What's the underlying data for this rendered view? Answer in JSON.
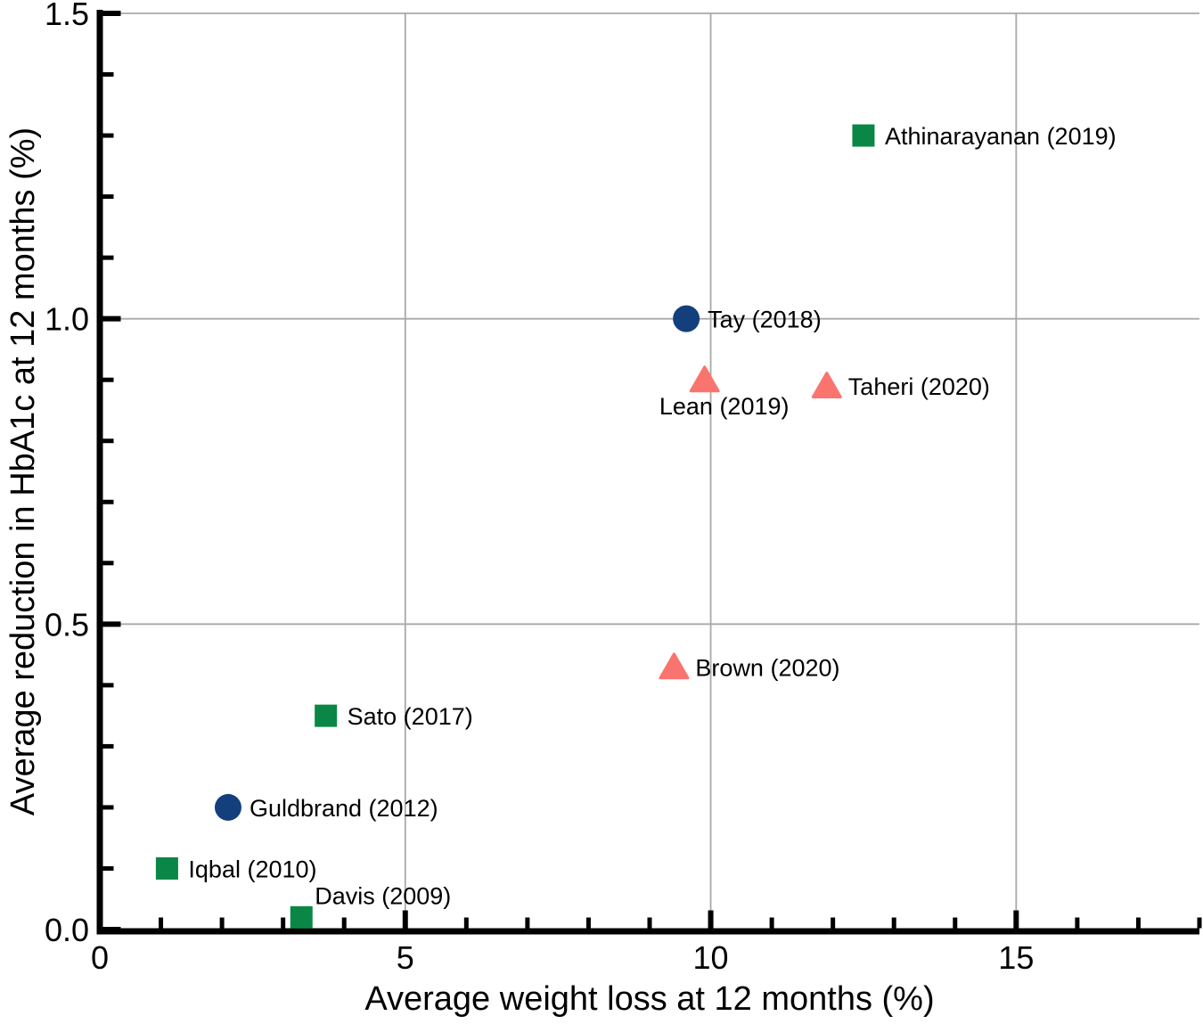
{
  "chart_data": {
    "type": "scatter",
    "xlabel": "Average weight loss at 12 months (%)",
    "ylabel": "Average reduction in HbA1c at 12 months (%)",
    "xlim": [
      0,
      18
    ],
    "ylim": [
      0,
      1.5
    ],
    "x_major_ticks": [
      0,
      5,
      10,
      15
    ],
    "x_tick_labels": [
      "0",
      "5",
      "10",
      "15"
    ],
    "x_minor_tick_step": 1,
    "y_major_ticks": [
      0,
      0.5,
      1.0,
      1.5
    ],
    "y_tick_labels": [
      "0.0",
      "0.5",
      "1.0",
      "1.5"
    ],
    "y_minor_tick_step": 0.1,
    "grid": true,
    "grid_lines_x": [
      5,
      10,
      15
    ],
    "grid_lines_y": [
      0.5,
      1.0,
      1.5
    ],
    "legend_position": "none",
    "style": {
      "background": "#ffffff",
      "axis_color": "#000000",
      "grid_color": "#a9a9a9",
      "text_color": "#000000"
    },
    "series": [
      {
        "name": "green-square-studies",
        "marker": "square",
        "color": "#0a8746",
        "points": [
          {
            "label": "Athinarayanan (2019)",
            "x": 12.5,
            "y": 1.3,
            "label_pos": "right"
          },
          {
            "label": "Sato (2017)",
            "x": 3.7,
            "y": 0.35,
            "label_pos": "right"
          },
          {
            "label": "Iqbal (2010)",
            "x": 1.1,
            "y": 0.1,
            "label_pos": "right"
          },
          {
            "label": "Davis (2009)",
            "x": 3.3,
            "y": 0.02,
            "label_pos": "above-right"
          }
        ]
      },
      {
        "name": "blue-circle-studies",
        "marker": "circle",
        "color": "#133f7c",
        "points": [
          {
            "label": "Tay (2018)",
            "x": 9.6,
            "y": 1.0,
            "label_pos": "right"
          },
          {
            "label": "Guldbrand (2012)",
            "x": 2.1,
            "y": 0.2,
            "label_pos": "right"
          }
        ]
      },
      {
        "name": "salmon-triangle-studies",
        "marker": "triangle",
        "color": "#fa746f",
        "points": [
          {
            "label": "Lean (2019)",
            "x": 9.9,
            "y": 0.9,
            "label_pos": "below"
          },
          {
            "label": "Taheri (2020)",
            "x": 11.9,
            "y": 0.89,
            "label_pos": "right"
          },
          {
            "label": "Brown (2020)",
            "x": 9.4,
            "y": 0.43,
            "label_pos": "right"
          }
        ]
      }
    ]
  }
}
